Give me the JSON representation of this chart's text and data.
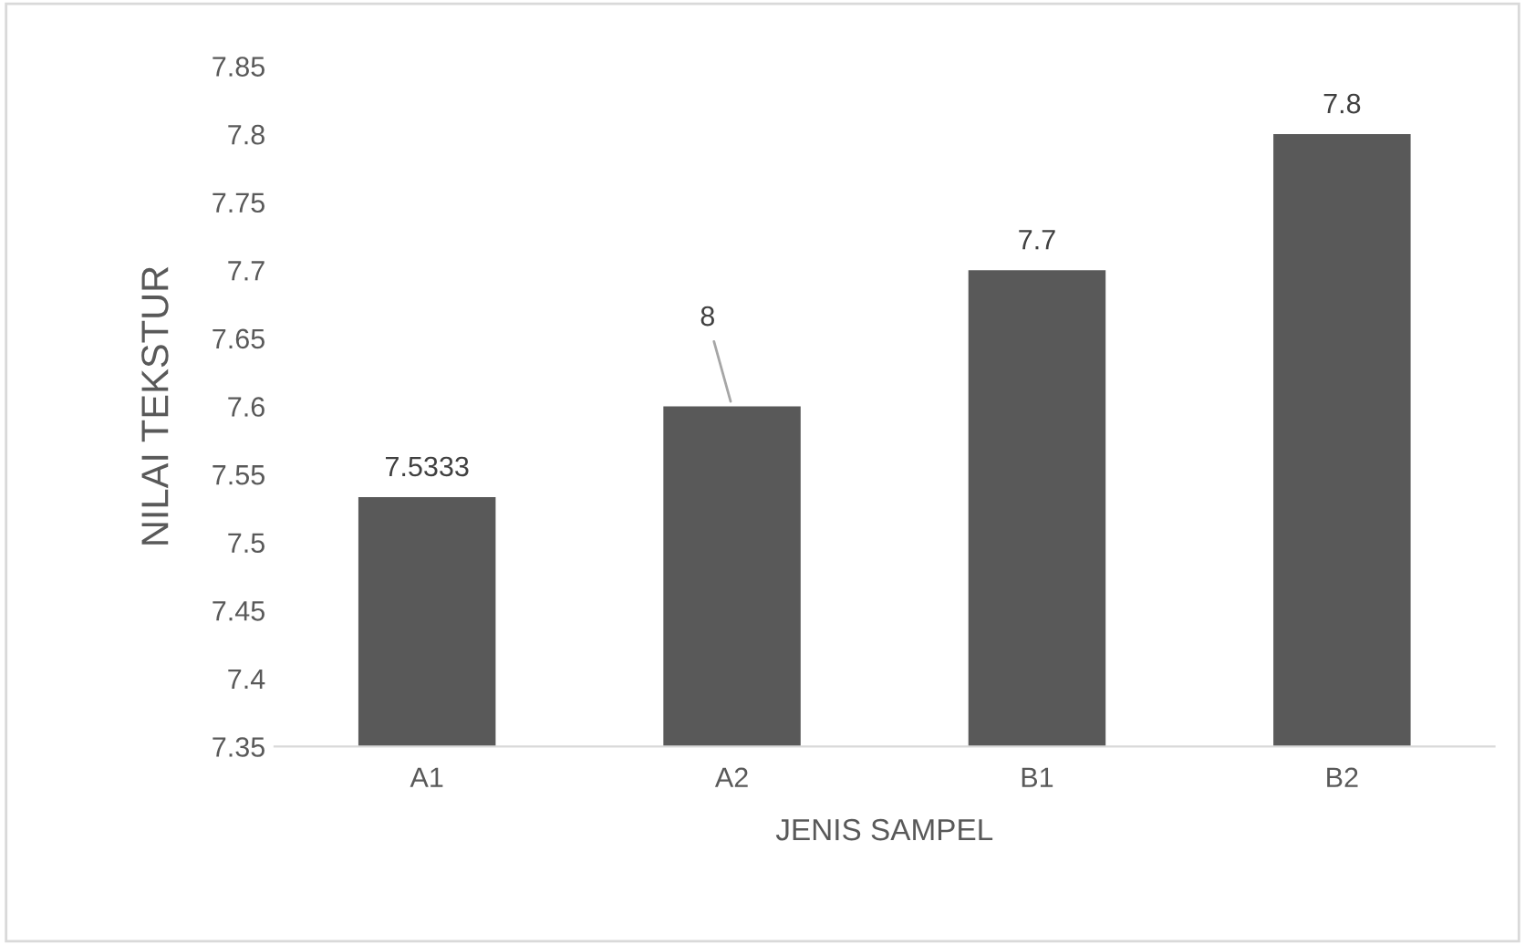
{
  "chart_data": {
    "type": "bar",
    "xlabel": "JENIS SAMPEL",
    "ylabel": "NILAI TEKSTUR",
    "categories": [
      "A1",
      "A2",
      "B1",
      "B2"
    ],
    "values": [
      7.5333,
      7.6,
      7.7,
      7.8
    ],
    "value_labels": [
      "7.5333",
      "8",
      "7.7",
      "7.8"
    ],
    "color": "#595959",
    "ylim": [
      7.35,
      7.85
    ],
    "yticks": [
      7.35,
      7.4,
      7.45,
      7.5,
      7.55,
      7.6,
      7.65,
      7.7,
      7.75,
      7.8,
      7.85
    ],
    "grid": false,
    "legend": false
  }
}
